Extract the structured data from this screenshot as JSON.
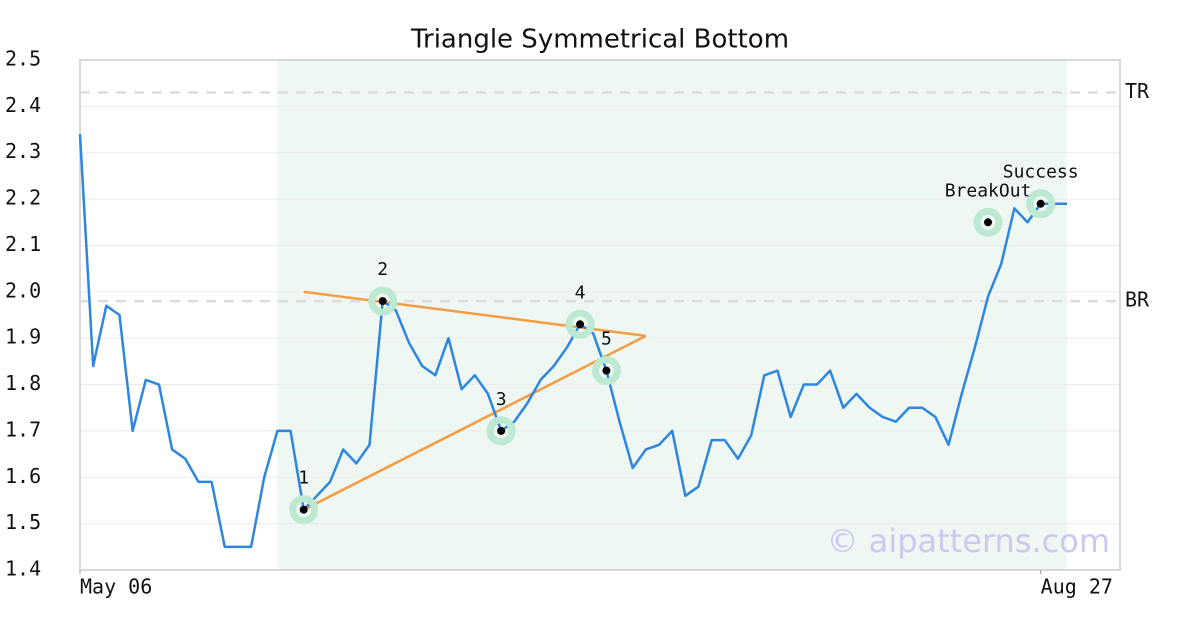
{
  "chart_data": {
    "type": "line",
    "title": "Triangle Symmetrical Bottom",
    "categories": [
      "May 06",
      null,
      null,
      null,
      null,
      null,
      null,
      null,
      null,
      null,
      null,
      null,
      null,
      null,
      null,
      null,
      null,
      null,
      null,
      null,
      null,
      null,
      null,
      null,
      null,
      null,
      null,
      null,
      null,
      null,
      null,
      null,
      null,
      null,
      null,
      null,
      null,
      null,
      null,
      null,
      null,
      null,
      null,
      null,
      null,
      null,
      null,
      null,
      null,
      null,
      null,
      null,
      null,
      null,
      null,
      null,
      null,
      null,
      null,
      null,
      null,
      null,
      null,
      null,
      null,
      null,
      null,
      null,
      null,
      null,
      null,
      null,
      null,
      "Aug 27",
      null,
      null
    ],
    "series": [
      {
        "color": "#2e86de",
        "values": [
          2.34,
          1.84,
          1.97,
          1.95,
          1.7,
          1.81,
          1.8,
          1.66,
          1.64,
          1.59,
          1.59,
          1.45,
          1.45,
          1.45,
          1.6,
          1.7,
          1.7,
          1.53,
          1.56,
          1.59,
          1.66,
          1.63,
          1.67,
          1.98,
          1.96,
          1.89,
          1.84,
          1.82,
          1.9,
          1.79,
          1.82,
          1.78,
          1.7,
          1.72,
          1.76,
          1.81,
          1.84,
          1.88,
          1.93,
          1.91,
          1.83,
          1.72,
          1.62,
          1.66,
          1.67,
          1.7,
          1.56,
          1.58,
          1.68,
          1.68,
          1.64,
          1.69,
          1.82,
          1.83,
          1.73,
          1.8,
          1.8,
          1.83,
          1.75,
          1.78,
          1.75,
          1.73,
          1.72,
          1.75,
          1.75,
          1.73,
          1.67,
          1.78,
          1.88,
          1.99,
          2.06,
          2.18,
          2.15,
          2.19,
          2.19,
          2.19
        ]
      }
    ],
    "ylim": [
      1.4,
      2.5
    ],
    "yticks": [
      1.4,
      1.5,
      1.6,
      1.7,
      1.8,
      1.9,
      {
        "value": 2,
        "label": "2.0"
      },
      2.1,
      2.2,
      2.3,
      2.4,
      2.5
    ],
    "grid": true,
    "pattern_range": [
      15,
      75
    ],
    "pattern_color": "#eef7f2",
    "levels": [
      {
        "label": "TR",
        "value": 2.43
      },
      {
        "label": "BR",
        "value": 1.98
      }
    ],
    "trendline_color": "#f59c42",
    "trendlines": [
      {
        "x": [
          17,
          43
        ],
        "y": [
          2.0,
          1.905
        ]
      },
      {
        "x": [
          17,
          43
        ],
        "y": [
          1.53,
          1.905
        ]
      }
    ],
    "marker_color": "#bde8d2",
    "annotations": [
      {
        "label": "1",
        "x": 17,
        "y": 1.53
      },
      {
        "label": "2",
        "x": 23,
        "y": 1.98
      },
      {
        "label": "3",
        "x": 32,
        "y": 1.7
      },
      {
        "label": "4",
        "x": 38,
        "y": 1.93
      },
      {
        "label": "5",
        "x": 40,
        "y": 1.83
      },
      {
        "label": "BreakOut",
        "x": 69,
        "y": 2.15
      },
      {
        "label": "Success",
        "x": 73,
        "y": 2.19
      }
    ],
    "watermark": "© aipatterns.com"
  }
}
